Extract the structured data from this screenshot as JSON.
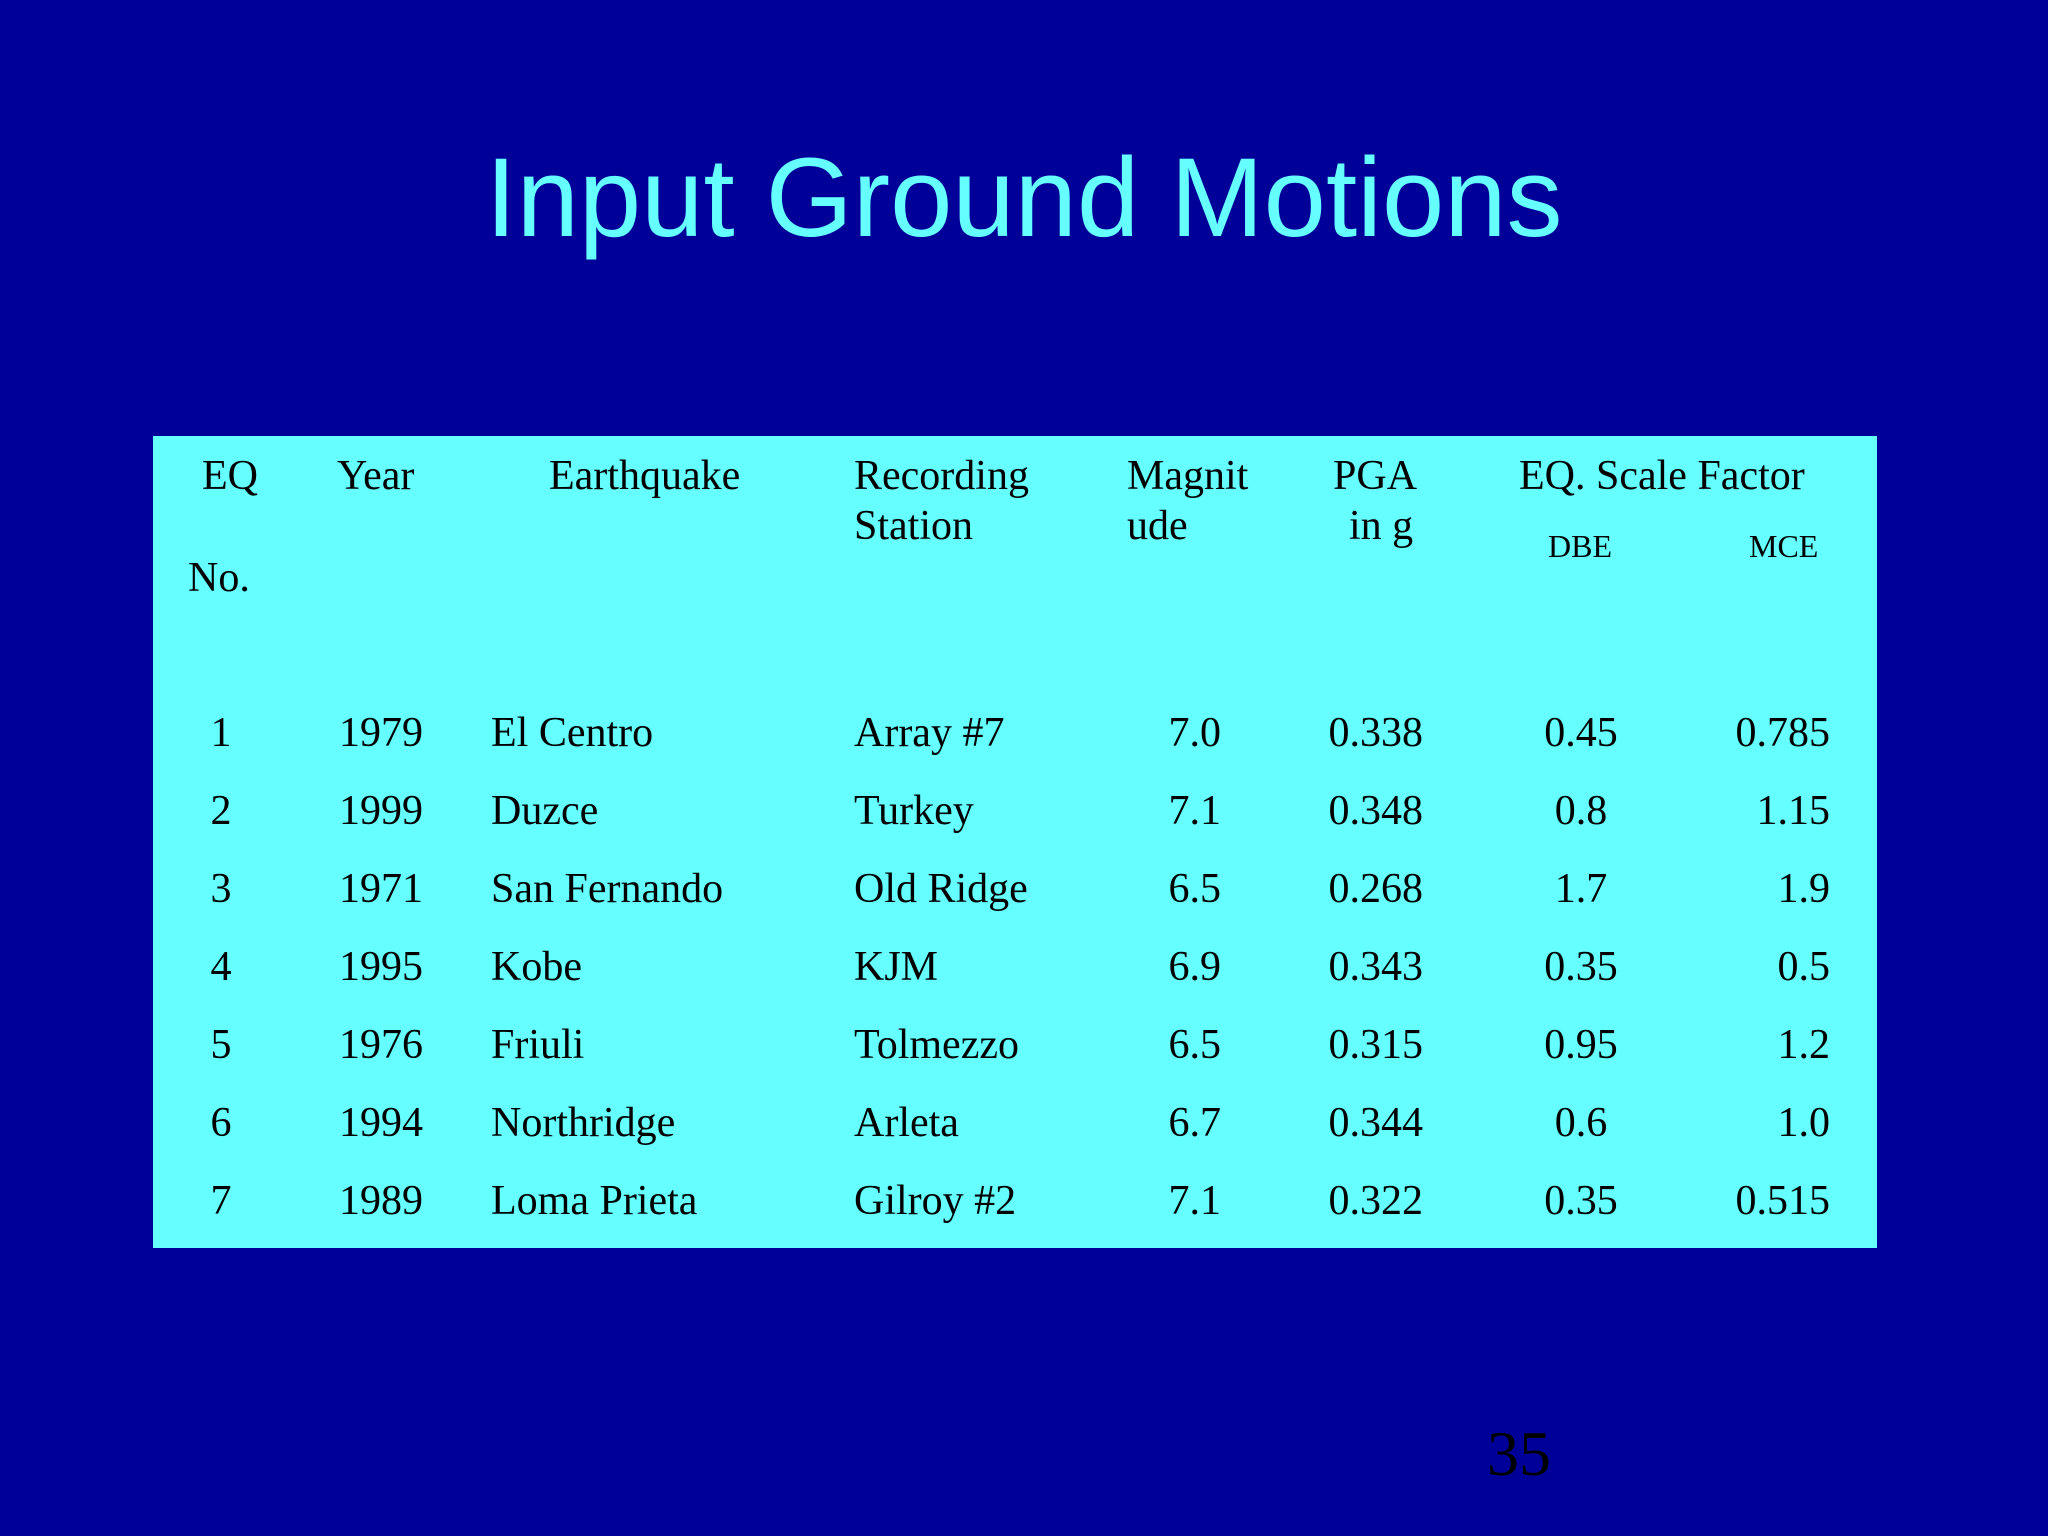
{
  "slide": {
    "title": "Input Ground Motions",
    "page_number": "35"
  },
  "table": {
    "headers": {
      "eq_no_line1": "EQ",
      "eq_no_line2": "No.",
      "year": "Year",
      "earthquake": "Earthquake",
      "station_line1": "Recording",
      "station_line2": "Station",
      "magnitude_line1": "Magnit",
      "magnitude_line2": "ude",
      "pga_line1": "PGA",
      "pga_line2": "in g",
      "scale_factor": "EQ. Scale Factor",
      "dbe": "DBE",
      "mce": "MCE"
    },
    "rows": [
      {
        "no": "1",
        "year": "1979",
        "earthquake": "El Centro",
        "station": "Array #7",
        "magnitude": "7.0",
        "pga": "0.338",
        "dbe": "0.45",
        "mce": "0.785"
      },
      {
        "no": "2",
        "year": "1999",
        "earthquake": "Duzce",
        "station": "Turkey",
        "magnitude": "7.1",
        "pga": "0.348",
        "dbe": "0.8",
        "mce": "1.15"
      },
      {
        "no": "3",
        "year": "1971",
        "earthquake": "San Fernando",
        "station": "Old Ridge",
        "magnitude": "6.5",
        "pga": "0.268",
        "dbe": "1.7",
        "mce": "1.9"
      },
      {
        "no": "4",
        "year": "1995",
        "earthquake": "Kobe",
        "station": "KJM",
        "magnitude": "6.9",
        "pga": "0.343",
        "dbe": "0.35",
        "mce": "0.5"
      },
      {
        "no": "5",
        "year": "1976",
        "earthquake": "Friuli",
        "station": "Tolmezzo",
        "magnitude": "6.5",
        "pga": "0.315",
        "dbe": "0.95",
        "mce": "1.2"
      },
      {
        "no": "6",
        "year": "1994",
        "earthquake": "Northridge",
        "station": "Arleta",
        "magnitude": "6.7",
        "pga": "0.344",
        "dbe": "0.6",
        "mce": "1.0"
      },
      {
        "no": "7",
        "year": "1989",
        "earthquake": "Loma Prieta",
        "station": "Gilroy #2",
        "magnitude": "7.1",
        "pga": "0.322",
        "dbe": "0.35",
        "mce": "0.515"
      }
    ]
  },
  "colors": {
    "background": "#000099",
    "title": "#66FFFF",
    "table_background": "#66FFFF",
    "text": "#000000"
  }
}
